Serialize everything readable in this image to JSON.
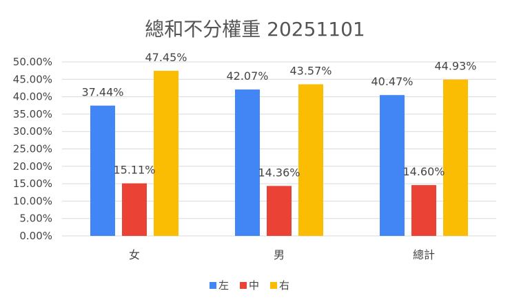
{
  "chart_data": {
    "type": "bar",
    "title": "總和不分權重 20251101",
    "categories": [
      "女",
      "男",
      "總計"
    ],
    "series": [
      {
        "name": "左",
        "color": "#4285F4",
        "values": [
          37.44,
          42.07,
          40.47
        ],
        "labels": [
          "37.44%",
          "42.07%",
          "40.47%"
        ]
      },
      {
        "name": "中",
        "color": "#EA4335",
        "values": [
          15.11,
          14.36,
          14.6
        ],
        "labels": [
          "15.11%",
          "14.36%",
          "14.60%"
        ]
      },
      {
        "name": "右",
        "color": "#FBBC04",
        "values": [
          47.45,
          43.57,
          44.93
        ],
        "labels": [
          "47.45%",
          "43.57%",
          "44.93%"
        ]
      }
    ],
    "y_ticks": [
      "0.00%",
      "5.00%",
      "10.00%",
      "15.00%",
      "20.00%",
      "25.00%",
      "30.00%",
      "35.00%",
      "40.00%",
      "45.00%",
      "50.00%"
    ],
    "ylim": [
      0,
      50
    ],
    "grid": true,
    "legend_position": "bottom"
  }
}
